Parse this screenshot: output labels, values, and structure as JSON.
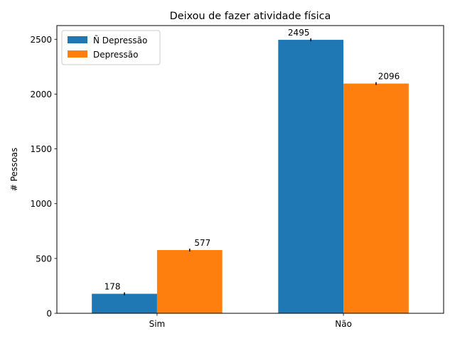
{
  "chart_data": {
    "type": "bar",
    "title": "Deixou de fazer atividade física",
    "xlabel": "",
    "ylabel": "# Pessoas",
    "categories": [
      "Sim",
      "Não"
    ],
    "series": [
      {
        "name": "Ñ Depressão",
        "values": [
          178,
          2495
        ],
        "color": "#1f77b4"
      },
      {
        "name": "Depressão",
        "values": [
          577,
          2096
        ],
        "color": "#ff7f0e"
      }
    ],
    "ylim": [
      0,
      2625
    ],
    "yticks": [
      0,
      500,
      1000,
      1500,
      2000,
      2500
    ],
    "legend_position": "upper-left",
    "grid": false,
    "data_labels": true,
    "error_bars": true
  }
}
